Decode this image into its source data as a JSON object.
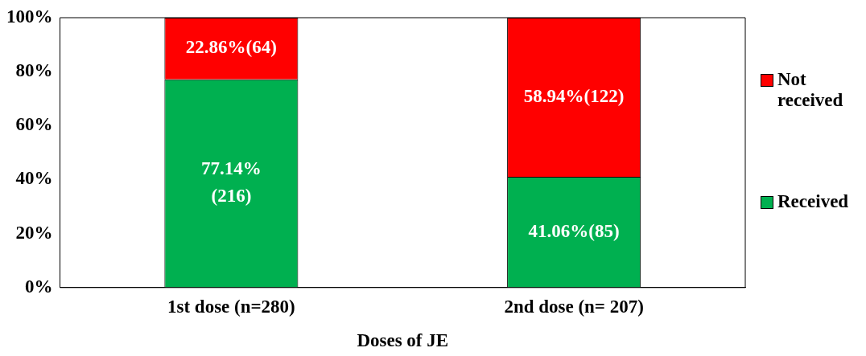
{
  "chart_data": {
    "type": "bar",
    "stacked": true,
    "xlabel": "Doses of JE",
    "categories": [
      "1st dose (n=280)",
      "2nd dose (n= 207)"
    ],
    "series": [
      {
        "name": "Received",
        "color": "#00b050",
        "values": [
          77.14,
          41.06
        ],
        "value_labels": [
          "77.14%\n(216)",
          "41.06%(85)"
        ]
      },
      {
        "name": "Not received",
        "color": "#ff0000",
        "values": [
          22.86,
          58.94
        ],
        "value_labels": [
          "22.86%(64)",
          "58.94%(122)"
        ]
      }
    ],
    "ylim": [
      0,
      100
    ],
    "yticks": [
      {
        "value": 0,
        "label": "0%"
      },
      {
        "value": 20,
        "label": "20%"
      },
      {
        "value": 40,
        "label": "40%"
      },
      {
        "value": 60,
        "label": "60%"
      },
      {
        "value": 80,
        "label": "80%"
      },
      {
        "value": 100,
        "label": "100%"
      }
    ],
    "grid": false,
    "legend": "right"
  }
}
